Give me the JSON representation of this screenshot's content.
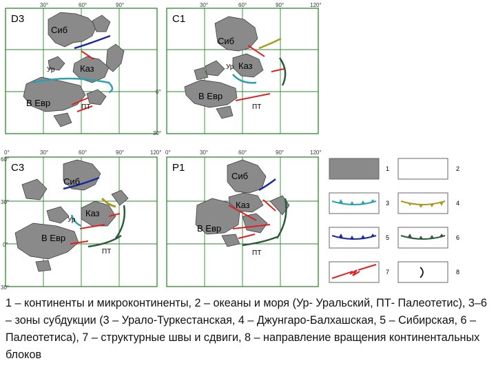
{
  "panels": [
    {
      "id": "d3",
      "stage": "D3",
      "labels": {
        "sib": "Сиб",
        "ur": "Ур",
        "kaz": "Каз",
        "veur": "В Евр",
        "pt": "ПТ"
      }
    },
    {
      "id": "c1",
      "stage": "C1",
      "labels": {
        "sib": "Сиб",
        "ur": "Ур",
        "kaz": "Каз",
        "veur": "В Евр",
        "pt": "ПТ"
      }
    },
    {
      "id": "c3",
      "stage": "C3",
      "labels": {
        "sib": "Сиб",
        "ur": "Ур",
        "kaz": "Каз",
        "veur": "В Евр",
        "pt": "ПТ"
      }
    },
    {
      "id": "p1",
      "stage": "P1",
      "labels": {
        "sib": "Сиб",
        "kaz": "Каз",
        "veur": "В Евр",
        "pt": "ПТ"
      }
    }
  ],
  "axes": {
    "lon_ticks": [
      "0°",
      "30°",
      "60°",
      "90°",
      "120°"
    ],
    "lat_ticks": [
      "60°",
      "30°",
      "0°",
      "30°"
    ]
  },
  "legend": {
    "items": [
      {
        "n": "1",
        "kind": "continent"
      },
      {
        "n": "2",
        "kind": "ocean"
      },
      {
        "n": "3",
        "kind": "subduction",
        "color": "#2aa0b0"
      },
      {
        "n": "4",
        "kind": "subduction",
        "color": "#a89a20"
      },
      {
        "n": "5",
        "kind": "subduction",
        "color": "#1a2a9a"
      },
      {
        "n": "6",
        "kind": "subduction",
        "color": "#2a5a3a"
      },
      {
        "n": "7",
        "kind": "suture",
        "color": "#e02020"
      },
      {
        "n": "8",
        "kind": "rotation"
      }
    ]
  },
  "colors": {
    "continent": "#8a8a8a",
    "grid": "#2a8a2a",
    "ural_turk": "#2aa0b0",
    "dzhung": "#a89a20",
    "siberian": "#1a2a9a",
    "paleotethys": "#2a5a3a",
    "suture": "#e02020"
  },
  "caption": "1 – континенты и микроконтиненты, 2 – океаны и моря (Ур- Уральский, ПТ- Палеотетис), 3–6 – зоны субдукции (3 – Урало-Туркестанская, 4 – Джунгаро-Балхашская, 5 – Сибирская, 6 – Палеотетиса), 7 – структурные швы и сдвиги, 8 – направление вращения континентальных блоков"
}
